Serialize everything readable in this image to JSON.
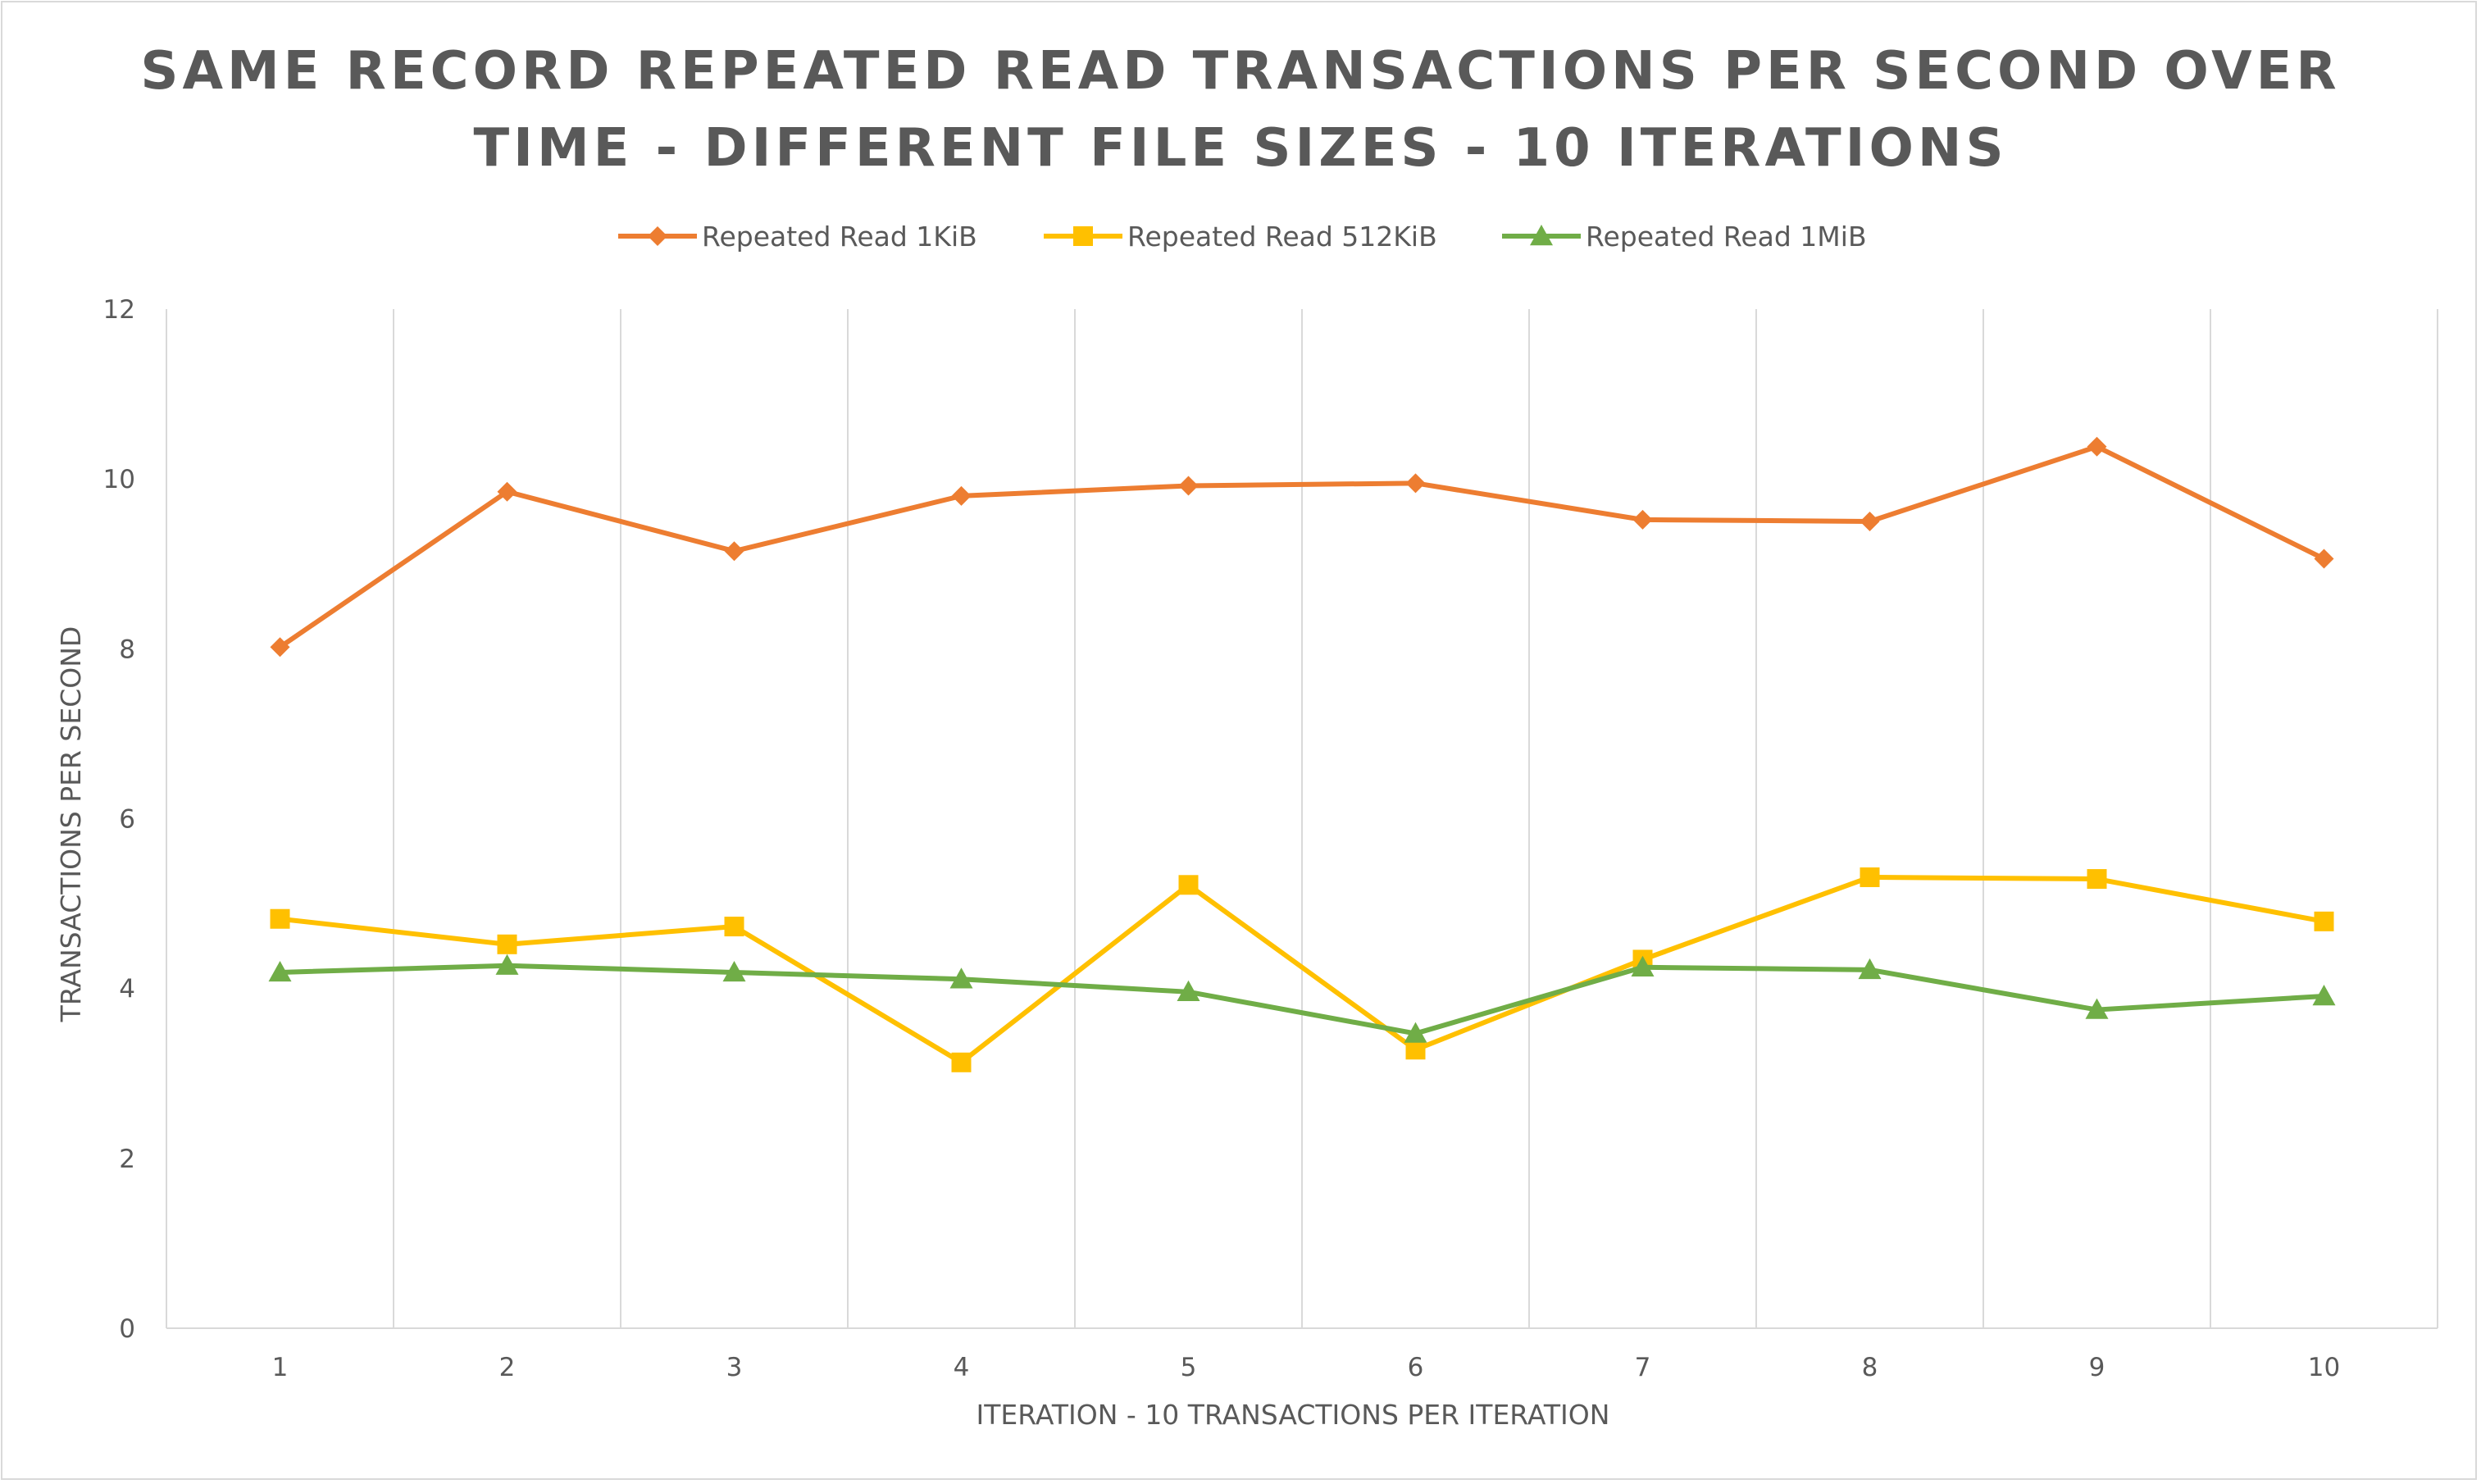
{
  "chart_data": {
    "type": "line",
    "title_lines": [
      "SAME RECORD REPEATED READ TRANSACTIONS PER SECOND OVER",
      "TIME - DIFFERENT FILE SIZES - 10 ITERATIONS"
    ],
    "xlabel": "ITERATION - 10 TRANSACTIONS PER ITERATION",
    "ylabel": "TRANSACTIONS PER SECOND",
    "categories": [
      "1",
      "2",
      "3",
      "4",
      "5",
      "6",
      "7",
      "8",
      "9",
      "10"
    ],
    "ylim": [
      0,
      12
    ],
    "yticks": [
      0,
      2,
      4,
      6,
      8,
      10,
      12
    ],
    "grid": "vertical",
    "legend_position": "top",
    "series": [
      {
        "name": "Repeated Read 1KiB",
        "color": "#ED7D31",
        "marker": "diamond",
        "values": [
          8.02,
          9.85,
          9.15,
          9.8,
          9.92,
          9.95,
          9.52,
          9.5,
          10.38,
          9.06
        ]
      },
      {
        "name": "Repeated Read 512KiB",
        "color": "#FFC000",
        "marker": "square",
        "values": [
          4.82,
          4.52,
          4.73,
          3.13,
          5.22,
          3.28,
          4.34,
          5.31,
          5.29,
          4.79
        ]
      },
      {
        "name": "Repeated Read 1MiB",
        "color": "#70AD47",
        "marker": "triangle",
        "values": [
          4.19,
          4.27,
          4.19,
          4.11,
          3.96,
          3.47,
          4.25,
          4.22,
          3.75,
          3.91
        ]
      }
    ]
  }
}
